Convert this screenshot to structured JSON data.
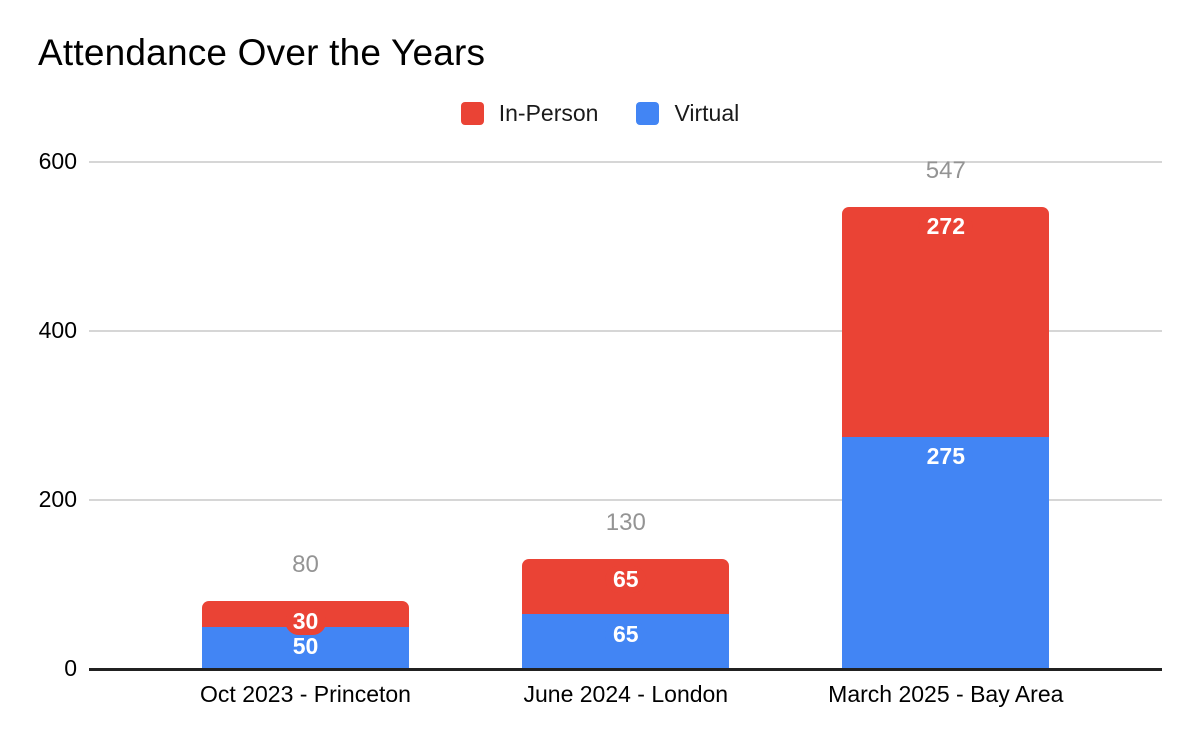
{
  "title": "Attendance Over the Years",
  "legend": {
    "items": [
      {
        "label": "In-Person",
        "color": "#EA4335"
      },
      {
        "label": "Virtual",
        "color": "#4285F4"
      }
    ]
  },
  "chart_data": {
    "type": "bar",
    "stacked": true,
    "title": "Attendance Over the Years",
    "categories": [
      "Oct 2023 - Princeton",
      "June 2024 - London",
      "March 2025 - Bay Area"
    ],
    "series": [
      {
        "name": "In-Person",
        "color": "#EA4335",
        "values": [
          30,
          65,
          272
        ]
      },
      {
        "name": "Virtual",
        "color": "#4285F4",
        "values": [
          50,
          65,
          275
        ]
      }
    ],
    "stack_bottom_to_top": [
      "Virtual",
      "In-Person"
    ],
    "totals": [
      80,
      130,
      547
    ],
    "y_ticks": [
      0,
      200,
      400,
      600
    ],
    "ylim": [
      0,
      600
    ],
    "xlabel": "",
    "ylabel": "",
    "grid": true,
    "legend_position": "top",
    "segment_label_color": "#ffffff",
    "total_label_color": "#949494",
    "axis_color": "#212121",
    "gridline_color": "#d6d6d6",
    "background_color": "#ffffff"
  }
}
